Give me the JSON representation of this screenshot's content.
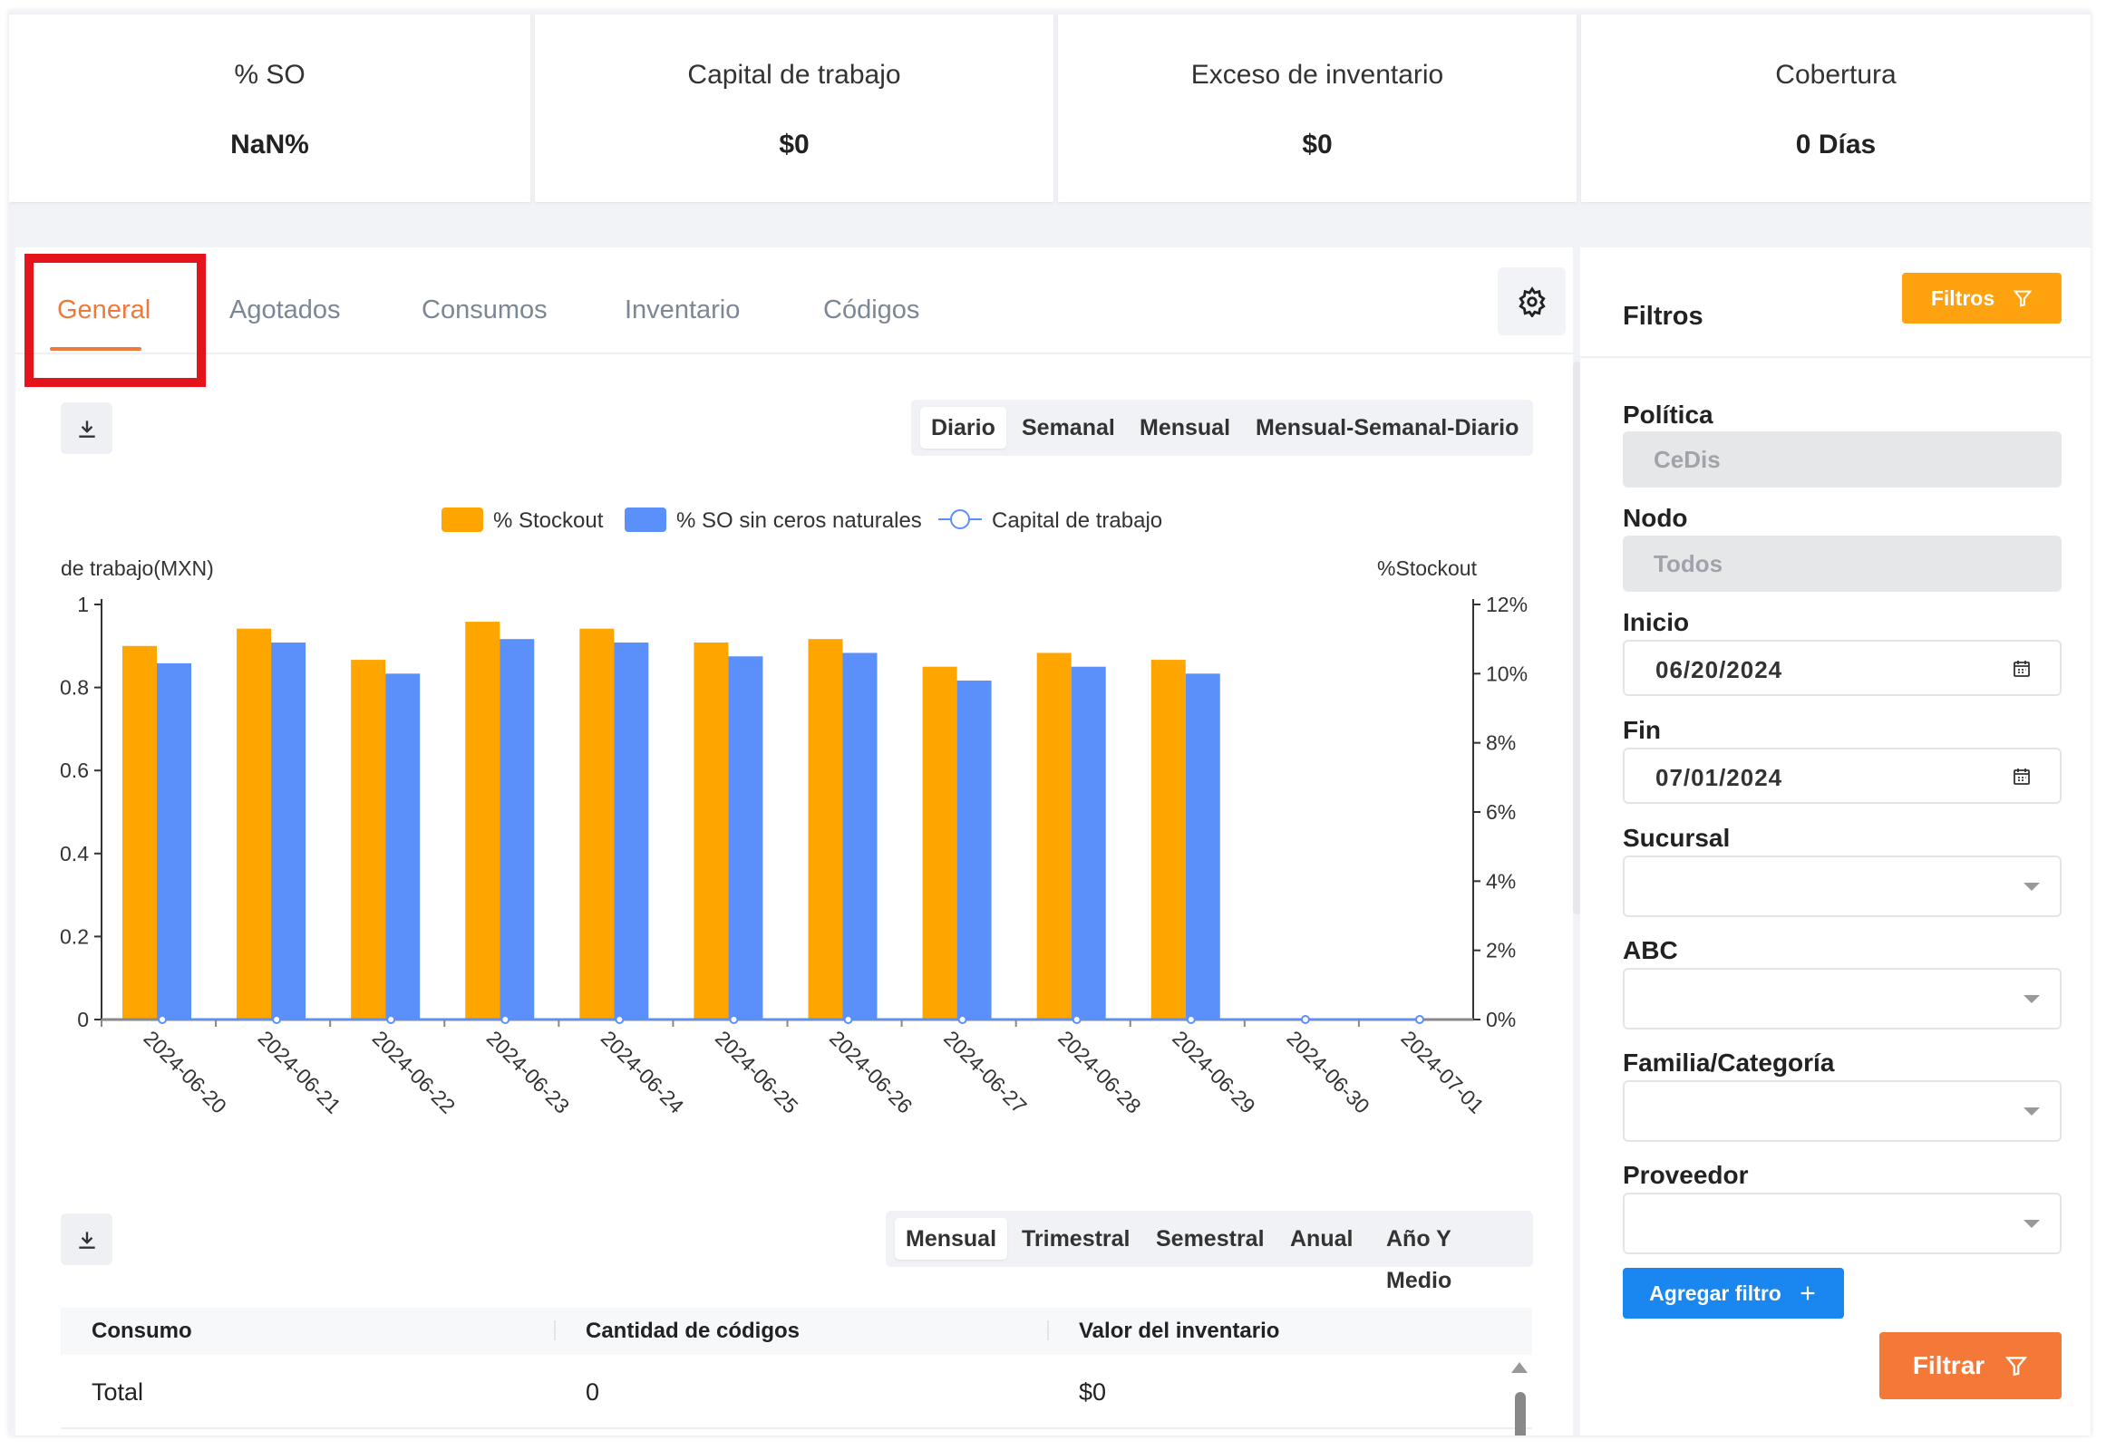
{
  "kpis": [
    {
      "title": "% SO",
      "value": "NaN%"
    },
    {
      "title": "Capital de trabajo",
      "value": "$0"
    },
    {
      "title": "Exceso de inventario",
      "value": "$0"
    },
    {
      "title": "Cobertura",
      "value": "0 Días"
    }
  ],
  "tabs": [
    "General",
    "Agotados",
    "Consumos",
    "Inventario",
    "Códigos"
  ],
  "active_tab": "General",
  "granularity": {
    "options": [
      "Diario",
      "Semanal",
      "Mensual",
      "Mensual-Semanal-Diario"
    ],
    "selected": "Diario"
  },
  "period": {
    "options": [
      "Mensual",
      "Trimestral",
      "Semestral",
      "Anual",
      "Año Y Medio"
    ],
    "selected": "Mensual"
  },
  "chart_data": {
    "type": "bar",
    "left_axis_label": "de trabajo(MXN)",
    "right_axis_label": "%Stockout",
    "left_ticks": [
      "0",
      "0.2",
      "0.4",
      "0.6",
      "0.8",
      "1"
    ],
    "right_ticks": [
      "0%",
      "2%",
      "4%",
      "6%",
      "8%",
      "10%",
      "12%"
    ],
    "left_ylim": [
      0,
      1
    ],
    "right_ylim": [
      0,
      12
    ],
    "categories": [
      "2024-06-20",
      "2024-06-21",
      "2024-06-22",
      "2024-06-23",
      "2024-06-24",
      "2024-06-25",
      "2024-06-26",
      "2024-06-27",
      "2024-06-28",
      "2024-06-29",
      "2024-06-30",
      "2024-07-01"
    ],
    "series": [
      {
        "name": "% Stockout",
        "axis": "right",
        "color": "#ffa500",
        "values": [
          10.8,
          11.3,
          10.4,
          11.5,
          11.3,
          10.9,
          11.0,
          10.2,
          10.6,
          10.4,
          null,
          null
        ]
      },
      {
        "name": "% SO sin ceros naturales",
        "axis": "right",
        "color": "#5b8ff9",
        "values": [
          10.3,
          10.9,
          10.0,
          11.0,
          10.9,
          10.5,
          10.6,
          9.8,
          10.2,
          10.0,
          null,
          null
        ]
      },
      {
        "name": "Capital de trabajo",
        "axis": "left",
        "color": "#5b8ff9",
        "values": [
          0,
          0,
          0,
          0,
          0,
          0,
          0,
          0,
          0,
          0,
          0,
          0
        ]
      }
    ],
    "legend": "top-center"
  },
  "table": {
    "headers": [
      "Consumo",
      "Cantidad de códigos",
      "Valor del inventario"
    ],
    "rows": [
      [
        "Total",
        "0",
        "$0"
      ]
    ]
  },
  "filters": {
    "title": "Filtros",
    "button": "Filtros",
    "fields": [
      {
        "label": "Política",
        "value": "CeDis",
        "kind": "disabled"
      },
      {
        "label": "Nodo",
        "value": "Todos",
        "kind": "disabled"
      },
      {
        "label": "Inicio",
        "value": "06/20/2024",
        "kind": "date"
      },
      {
        "label": "Fin",
        "value": "07/01/2024",
        "kind": "date"
      },
      {
        "label": "Sucursal",
        "value": "",
        "kind": "select"
      },
      {
        "label": "ABC",
        "value": "",
        "kind": "select"
      },
      {
        "label": "Familia/Categoría",
        "value": "",
        "kind": "select"
      },
      {
        "label": "Proveedor",
        "value": "",
        "kind": "select"
      }
    ],
    "add_button": "Agregar filtro",
    "submit_button": "Filtrar"
  },
  "colors": {
    "accent": "#f0793a",
    "orange_button": "#ffa20f",
    "blue_button": "#1a86f0",
    "highlight": "#e3141b"
  }
}
